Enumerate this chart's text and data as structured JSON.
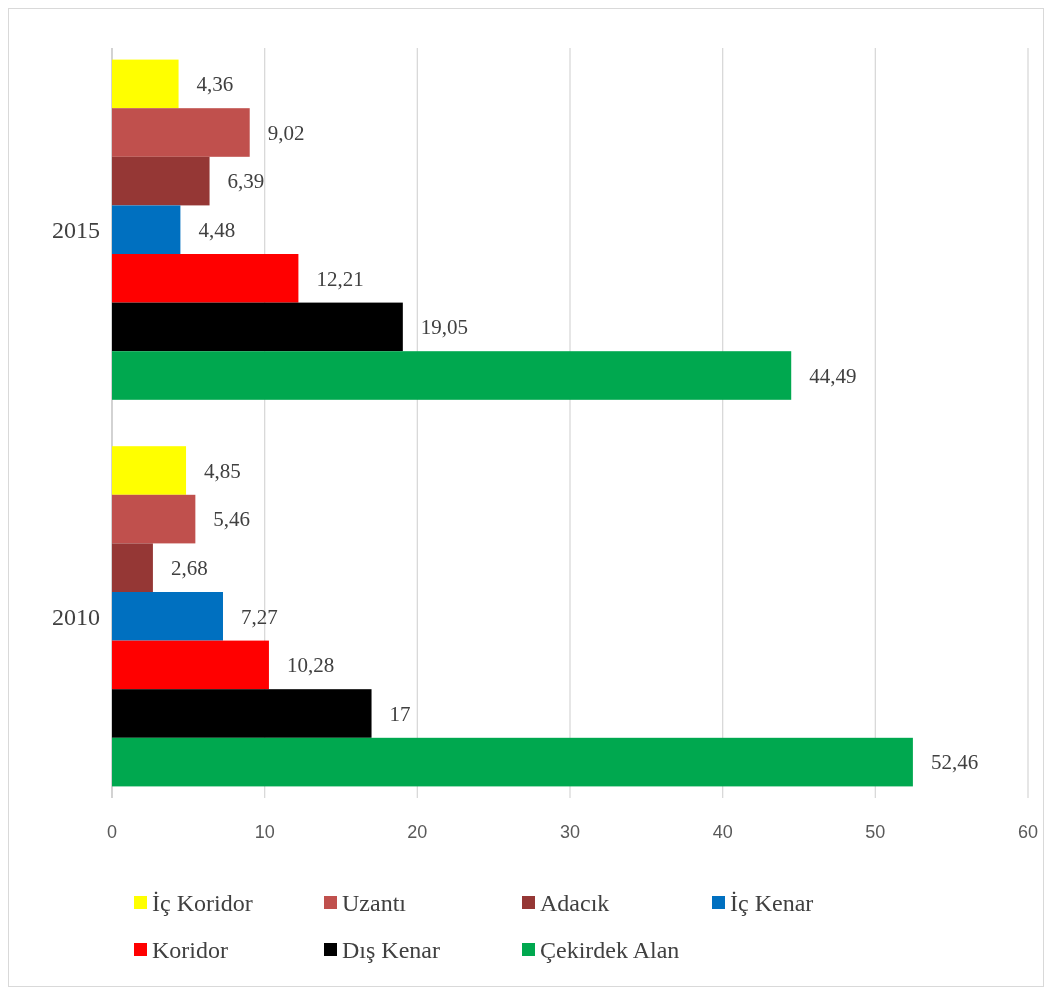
{
  "chart_data": {
    "type": "bar",
    "orientation": "horizontal",
    "categories": [
      "2015",
      "2010"
    ],
    "series": [
      {
        "name": "İç Koridor",
        "color": "#ffff00",
        "values": [
          4.36,
          4.85
        ],
        "value_labels": [
          "4,36",
          "4,85"
        ]
      },
      {
        "name": "Uzantı",
        "color": "#c0504d",
        "values": [
          9.02,
          5.46
        ],
        "value_labels": [
          "9,02",
          "5,46"
        ]
      },
      {
        "name": "Adacık",
        "color": "#953735",
        "values": [
          6.39,
          2.68
        ],
        "value_labels": [
          "6,39",
          "2,68"
        ]
      },
      {
        "name": "İç Kenar",
        "color": "#0070c0",
        "values": [
          4.48,
          7.27
        ],
        "value_labels": [
          "4,48",
          "7,27"
        ]
      },
      {
        "name": "Koridor",
        "color": "#ff0000",
        "values": [
          12.21,
          10.28
        ],
        "value_labels": [
          "12,21",
          "10,28"
        ]
      },
      {
        "name": "Dış Kenar",
        "color": "#000000",
        "values": [
          19.05,
          17
        ],
        "value_labels": [
          "19,05",
          "17"
        ]
      },
      {
        "name": "Çekirdek Alan",
        "color": "#00a84f",
        "values": [
          44.49,
          52.46
        ],
        "value_labels": [
          "44,49",
          "52,46"
        ]
      }
    ],
    "xlim": [
      0,
      60
    ],
    "xticks": [
      0,
      10,
      20,
      30,
      40,
      50,
      60
    ],
    "grid": "x",
    "legend": "bottom"
  }
}
